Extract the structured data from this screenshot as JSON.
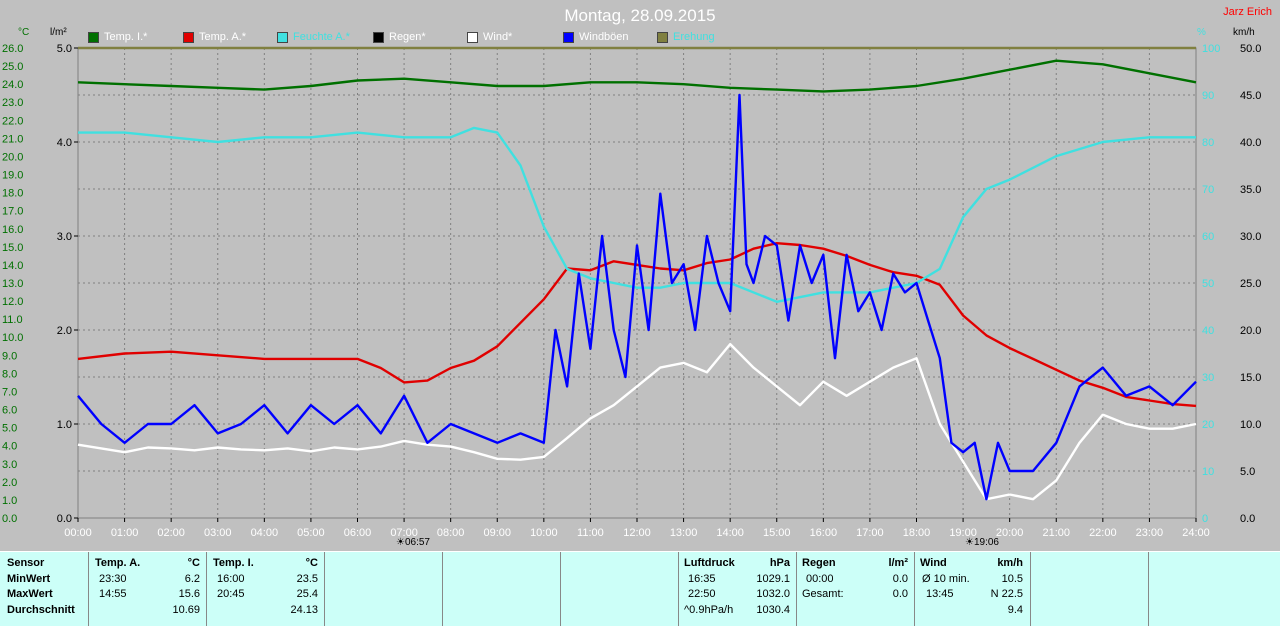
{
  "title": "Montag, 28.09.2015",
  "author": "Jarz Erich",
  "legend": [
    {
      "label": "Temp. I.*",
      "color": "#007000",
      "text_color": "#ffffff"
    },
    {
      "label": "Temp. A.*",
      "color": "#e00000",
      "text_color": "#ffffff"
    },
    {
      "label": "Feuchte A.*",
      "color": "#40e0e0",
      "text_color": "#40e0e0"
    },
    {
      "label": "Regen*",
      "color": "#000000",
      "text_color": "#ffffff"
    },
    {
      "label": "Wind*",
      "color": "#ffffff",
      "text_color": "#ffffff"
    },
    {
      "label": "Windböen",
      "color": "#0000ff",
      "text_color": "#ffffff"
    },
    {
      "label": "Erehung",
      "color": "#808040",
      "text_color": "#40e0e0"
    }
  ],
  "units": {
    "temp": "°C",
    "rain": "l/m²",
    "hum": "%",
    "wind": "km/h"
  },
  "sun": {
    "rise": "06:57",
    "set": "19:06"
  },
  "chart_data": {
    "type": "line",
    "x_unit": "hours",
    "xlim": [
      0,
      24
    ],
    "x_ticks": [
      "00:00",
      "01:00",
      "02:00",
      "03:00",
      "04:00",
      "05:00",
      "06:00",
      "07:00",
      "08:00",
      "09:00",
      "10:00",
      "11:00",
      "12:00",
      "13:00",
      "14:00",
      "15:00",
      "16:00",
      "17:00",
      "18:00",
      "19:00",
      "20:00",
      "21:00",
      "22:00",
      "23:00",
      "24:00"
    ],
    "axes": {
      "temp": {
        "range": [
          0,
          26
        ],
        "ticks": [
          "0.0",
          "1.0",
          "2.0",
          "3.0",
          "4.0",
          "5.0",
          "6.0",
          "7.0",
          "8.0",
          "9.0",
          "10.0",
          "11.0",
          "12.0",
          "13.0",
          "14.0",
          "15.0",
          "16.0",
          "17.0",
          "18.0",
          "19.0",
          "20.0",
          "21.0",
          "22.0",
          "23.0",
          "24.0",
          "25.0",
          "26.0"
        ]
      },
      "rain": {
        "range": [
          0,
          5
        ],
        "ticks": [
          "0.0",
          "1.0",
          "2.0",
          "3.0",
          "4.0",
          "5.0"
        ]
      },
      "hum": {
        "range": [
          0,
          100
        ],
        "ticks": [
          "0",
          "10",
          "20",
          "30",
          "40",
          "50",
          "60",
          "70",
          "80",
          "90",
          "100"
        ]
      },
      "wind": {
        "range": [
          0,
          50
        ],
        "ticks": [
          "0.0",
          "5.0",
          "10.0",
          "15.0",
          "20.0",
          "25.0",
          "30.0",
          "35.0",
          "40.0",
          "45.0",
          "50.0"
        ]
      }
    },
    "series": [
      {
        "name": "Temp. I.*",
        "axis": "temp",
        "color": "#007000",
        "x": [
          0,
          1,
          2,
          3,
          4,
          5,
          6,
          7,
          8,
          9,
          10,
          11,
          12,
          13,
          14,
          15,
          16,
          17,
          18,
          19,
          20,
          21,
          22,
          23,
          24
        ],
        "y": [
          24.1,
          24.0,
          23.9,
          23.8,
          23.7,
          23.9,
          24.2,
          24.3,
          24.1,
          23.9,
          23.9,
          24.1,
          24.1,
          24.0,
          23.8,
          23.7,
          23.6,
          23.7,
          23.9,
          24.3,
          24.8,
          25.3,
          25.1,
          24.6,
          24.1
        ]
      },
      {
        "name": "Temp. A.*",
        "axis": "temp",
        "color": "#e00000",
        "x": [
          0,
          1,
          2,
          3,
          4,
          5,
          6,
          6.5,
          7,
          7.5,
          8,
          8.5,
          9,
          9.5,
          10,
          10.5,
          11,
          11.5,
          12,
          12.5,
          13,
          13.5,
          14,
          14.5,
          15,
          15.5,
          16,
          16.5,
          17,
          17.5,
          18,
          18.5,
          19,
          19.5,
          20,
          20.5,
          21,
          21.5,
          22,
          22.5,
          23,
          23.5,
          24
        ],
        "y": [
          8.8,
          9.1,
          9.2,
          9.0,
          8.8,
          8.8,
          8.8,
          8.3,
          7.5,
          7.6,
          8.3,
          8.7,
          9.5,
          10.8,
          12.1,
          13.8,
          13.7,
          14.2,
          14.0,
          13.8,
          13.7,
          14.1,
          14.3,
          14.9,
          15.2,
          15.1,
          14.9,
          14.5,
          14.0,
          13.6,
          13.4,
          12.9,
          11.2,
          10.1,
          9.4,
          8.8,
          8.2,
          7.6,
          7.2,
          6.7,
          6.5,
          6.3,
          6.2
        ]
      },
      {
        "name": "Feuchte A.*",
        "axis": "hum",
        "color": "#40e0e0",
        "x": [
          0,
          1,
          2,
          3,
          4,
          5,
          6,
          7,
          8,
          8.5,
          9,
          9.5,
          10,
          10.5,
          11,
          11.5,
          12,
          12.5,
          13,
          14,
          15,
          16,
          17,
          18,
          18.5,
          19,
          19.5,
          20,
          21,
          22,
          23,
          24
        ],
        "y": [
          82,
          82,
          81,
          80,
          81,
          81,
          82,
          81,
          81,
          83,
          82,
          75,
          62,
          53,
          51,
          50,
          49,
          49,
          50,
          50,
          46,
          48,
          48,
          50,
          53,
          64,
          70,
          72,
          77,
          80,
          81,
          81
        ]
      },
      {
        "name": "Wind*",
        "axis": "wind",
        "color": "#ffffff",
        "x": [
          0,
          0.5,
          1,
          1.5,
          2,
          2.5,
          3,
          3.5,
          4,
          4.5,
          5,
          5.5,
          6,
          6.5,
          7,
          7.5,
          8,
          8.5,
          9,
          9.5,
          10,
          10.5,
          11,
          11.5,
          12,
          12.5,
          13,
          13.5,
          14,
          14.5,
          15,
          15.5,
          16,
          16.5,
          17,
          17.5,
          18,
          18.5,
          19,
          19.5,
          20,
          20.5,
          21,
          21.5,
          22,
          22.5,
          23,
          23.5,
          24
        ],
        "y": [
          7.8,
          7.4,
          7.0,
          7.5,
          7.4,
          7.2,
          7.5,
          7.3,
          7.2,
          7.4,
          7.1,
          7.5,
          7.3,
          7.6,
          8.2,
          7.8,
          7.6,
          7.0,
          6.3,
          6.2,
          6.5,
          8.5,
          10.6,
          12.0,
          14.0,
          16.0,
          16.5,
          15.5,
          18.5,
          16.0,
          14.0,
          12.0,
          14.5,
          13.0,
          14.5,
          16.0,
          17.0,
          10.0,
          6.0,
          2.0,
          2.5,
          2.0,
          4.0,
          8.0,
          11.0,
          10.0,
          9.5,
          9.5,
          10.0
        ]
      },
      {
        "name": "Windböen",
        "axis": "wind",
        "color": "#0000ff",
        "x": [
          0,
          0.5,
          1,
          1.5,
          2,
          2.5,
          3,
          3.5,
          4,
          4.5,
          5,
          5.5,
          6,
          6.5,
          7,
          7.5,
          8,
          8.5,
          9,
          9.5,
          10,
          10.25,
          10.5,
          10.75,
          11,
          11.25,
          11.5,
          11.75,
          12,
          12.25,
          12.5,
          12.75,
          13,
          13.25,
          13.5,
          13.75,
          14,
          14.2,
          14.35,
          14.5,
          14.75,
          15,
          15.25,
          15.5,
          15.75,
          16,
          16.25,
          16.5,
          16.75,
          17,
          17.25,
          17.5,
          17.75,
          18,
          18.25,
          18.5,
          18.75,
          19,
          19.25,
          19.5,
          19.75,
          20,
          20.5,
          21,
          21.5,
          22,
          22.5,
          23,
          23.5,
          24
        ],
        "y": [
          13.0,
          10.0,
          8.0,
          10.0,
          10.0,
          12.0,
          9.0,
          10.0,
          12.0,
          9.0,
          12.0,
          10.0,
          12.0,
          9.0,
          13.0,
          8.0,
          10.0,
          9.0,
          8.0,
          9.0,
          8.0,
          20.0,
          14.0,
          26.0,
          18.0,
          30.0,
          20.0,
          15.0,
          29.0,
          20.0,
          34.5,
          25.0,
          27.0,
          20.0,
          30.0,
          25.0,
          22.0,
          45.0,
          27.0,
          25.0,
          30.0,
          29.0,
          21.0,
          29.0,
          25.0,
          28.0,
          17.0,
          28.0,
          22.0,
          24.0,
          20.0,
          26.0,
          24.0,
          25.0,
          21.0,
          17.0,
          8.0,
          7.0,
          8.0,
          2.0,
          8.0,
          5.0,
          5.0,
          8.0,
          14.0,
          16.0,
          13.0,
          14.0,
          12.0,
          14.5
        ]
      },
      {
        "name": "Erehung",
        "axis": "rain",
        "color": "#808040",
        "x": [
          0,
          24
        ],
        "y": [
          5.0,
          5.0
        ]
      }
    ]
  },
  "stats": {
    "sensor": {
      "title": "Sensor",
      "rows": [
        "MinWert",
        "MaxWert",
        "Durchschnitt"
      ]
    },
    "temp_a": {
      "title": "Temp. A.",
      "unit": "°C",
      "rows": [
        [
          "23:30",
          "6.2"
        ],
        [
          "14:55",
          "15.6"
        ],
        [
          "",
          "10.69"
        ]
      ]
    },
    "temp_i": {
      "title": "Temp. I.",
      "unit": "°C",
      "rows": [
        [
          "16:00",
          "23.5"
        ],
        [
          "20:45",
          "25.4"
        ],
        [
          "",
          "24.13"
        ]
      ]
    },
    "pressure": {
      "title": "Luftdruck",
      "unit": "hPa",
      "rows": [
        [
          "16:35",
          "1029.1"
        ],
        [
          "22:50",
          "1032.0"
        ],
        [
          "^0.9hPa/h",
          "1030.4"
        ]
      ]
    },
    "rain": {
      "title": "Regen",
      "unit": "l/m²",
      "rows": [
        [
          "",
          ""
        ],
        [
          "00:00",
          "0.0"
        ],
        [
          "Gesamt:",
          "0.0"
        ]
      ]
    },
    "wind": {
      "title": "Wind",
      "unit": "km/h",
      "rows": [
        [
          "Ø 10 min.",
          "10.5"
        ],
        [
          "13:45",
          "N 22.5"
        ],
        [
          "",
          "9.4"
        ]
      ]
    }
  }
}
